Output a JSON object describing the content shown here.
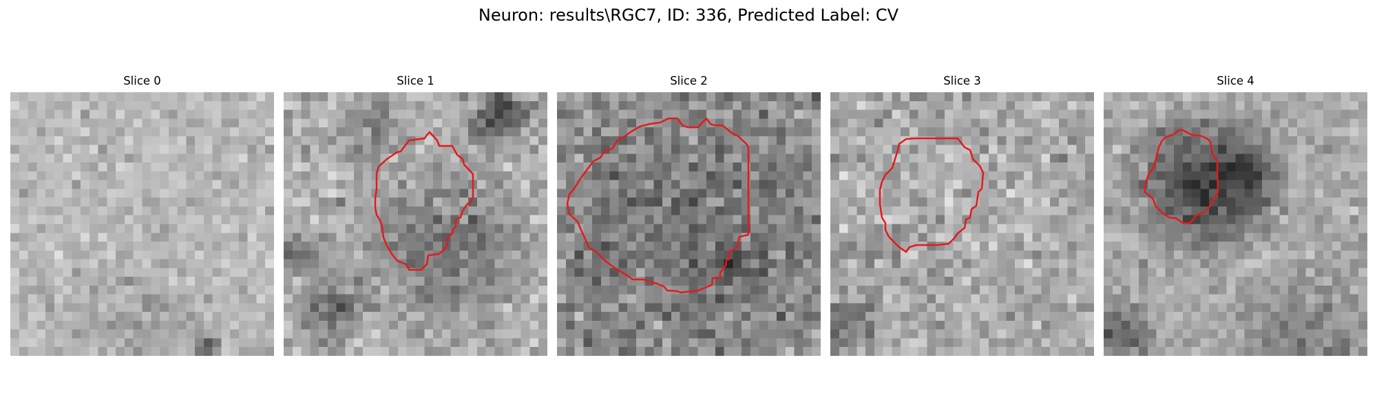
{
  "figure": {
    "title": "Neuron: results\\RGC7, ID: 336, Predicted Label: CV",
    "contour_color": "#e41a1c",
    "colormap": "gray",
    "image_grid_size": 30
  },
  "slices": [
    {
      "title": "Slice 0",
      "has_contour": false
    },
    {
      "title": "Slice 1",
      "has_contour": true
    },
    {
      "title": "Slice 2",
      "has_contour": true
    },
    {
      "title": "Slice 3",
      "has_contour": true
    },
    {
      "title": "Slice 4",
      "has_contour": true
    }
  ]
}
